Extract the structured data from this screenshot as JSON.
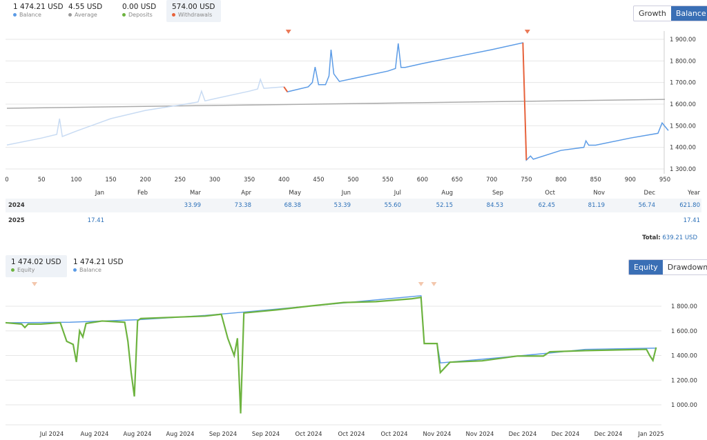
{
  "top_stats": [
    {
      "value": "1 474.21 USD",
      "label": "Balance",
      "color": "#5b9be6"
    },
    {
      "value": "4.55 USD",
      "label": "Average",
      "color": "#999999"
    },
    {
      "value": "0.00 USD",
      "label": "Deposits",
      "color": "#6db33f"
    },
    {
      "value": "574.00 USD",
      "label": "Withdrawals",
      "color": "#e8623a",
      "selected": true
    }
  ],
  "top_toggle": {
    "growth": "Growth",
    "balance": "Balance",
    "active": "Balance"
  },
  "bottom_stats": [
    {
      "value": "1 474.02 USD",
      "label": "Equity",
      "color": "#6db33f"
    },
    {
      "value": "1 474.21 USD",
      "label": "Balance",
      "color": "#5b9be6"
    }
  ],
  "bottom_toggle": {
    "equity": "Equity",
    "drawdown": "Drawdown",
    "active": "Equity"
  },
  "monthly": {
    "headers": [
      "Jan",
      "Feb",
      "Mar",
      "Apr",
      "May",
      "Jun",
      "Jul",
      "Aug",
      "Sep",
      "Oct",
      "Nov",
      "Dec",
      "Year"
    ],
    "rows": [
      {
        "year": "2024",
        "values": [
          "",
          "",
          "33.99",
          "73.38",
          "68.38",
          "53.39",
          "55.60",
          "52.15",
          "84.53",
          "62.45",
          "81.19",
          "56.74",
          "621.80"
        ]
      },
      {
        "year": "2025",
        "values": [
          "17.41",
          "",
          "",
          "",
          "",
          "",
          "",
          "",
          "",
          "",
          "",
          "",
          "17.41"
        ]
      }
    ],
    "total_label": "Total:",
    "total_value": "639.21 USD"
  },
  "chart_data": [
    {
      "type": "line",
      "x_ticks": [
        0,
        50,
        100,
        150,
        200,
        250,
        300,
        350,
        400,
        450,
        500,
        550,
        600,
        650,
        700,
        750,
        800,
        850,
        900,
        950
      ],
      "y_ticks": [
        "1 300.00",
        "1 400.00",
        "1 500.00",
        "1 600.00",
        "1 700.00",
        "1 800.00",
        "1 900.00"
      ],
      "ylim": [
        1300,
        1900
      ],
      "xlim": [
        0,
        950
      ],
      "series": [
        {
          "name": "Balance",
          "color": "#5b9be6",
          "points": [
            [
              0,
              1411
            ],
            [
              50,
              1443
            ],
            [
              72,
              1460
            ],
            [
              76,
              1533
            ],
            [
              80,
              1450
            ],
            [
              100,
              1475
            ],
            [
              150,
              1533
            ],
            [
              200,
              1571
            ],
            [
              250,
              1596
            ],
            [
              276,
              1610
            ],
            [
              281,
              1660
            ],
            [
              286,
              1615
            ],
            [
              300,
              1625
            ],
            [
              350,
              1660
            ],
            [
              362,
              1670
            ],
            [
              366,
              1715
            ],
            [
              371,
              1673
            ],
            [
              400,
              1680
            ],
            [
              405,
              1657
            ],
            [
              435,
              1680
            ],
            [
              441,
              1700
            ],
            [
              445,
              1772
            ],
            [
              450,
              1690
            ],
            [
              460,
              1690
            ],
            [
              465,
              1730
            ],
            [
              468,
              1852
            ],
            [
              472,
              1740
            ],
            [
              480,
              1705
            ],
            [
              550,
              1753
            ],
            [
              561,
              1765
            ],
            [
              565,
              1881
            ],
            [
              569,
              1770
            ],
            [
              575,
              1770
            ],
            [
              600,
              1788
            ],
            [
              650,
              1820
            ],
            [
              700,
              1852
            ],
            [
              745,
              1884
            ],
            [
              750,
              1341
            ],
            [
              756,
              1360
            ],
            [
              760,
              1345
            ],
            [
              800,
              1386
            ],
            [
              833,
              1400
            ],
            [
              836,
              1430
            ],
            [
              840,
              1410
            ],
            [
              850,
              1410
            ],
            [
              900,
              1443
            ],
            [
              940,
              1465
            ],
            [
              946,
              1513
            ],
            [
              955,
              1478
            ]
          ]
        },
        {
          "name": "Trend",
          "color": "#aaaaaa",
          "points": [
            [
              0,
              1581
            ],
            [
              950,
              1622
            ]
          ]
        }
      ],
      "withdrawals": [
        [
          400,
          405
        ],
        [
          745,
          750
        ]
      ],
      "withdrawal_color": "#e8623a"
    },
    {
      "type": "line",
      "x_ticks": [
        "Jul 2024",
        "Aug 2024",
        "Aug 2024",
        "Aug 2024",
        "Sep 2024",
        "Sep 2024",
        "Oct 2024",
        "Oct 2024",
        "Oct 2024",
        "Nov 2024",
        "Nov 2024",
        "Dec 2024",
        "Dec 2024",
        "Dec 2024",
        "Jan 2025"
      ],
      "y_ticks": [
        "1 000.00",
        "1 200.00",
        "1 400.00",
        "1 600.00",
        "1 800.00"
      ],
      "ylim": [
        900,
        1900
      ],
      "xlim": [
        "2024-06-20",
        "2025-01-09"
      ],
      "series": [
        {
          "name": "Equity",
          "color": "#6db33f",
          "points": [
            [
              "2024-06-20",
              1666
            ],
            [
              "2024-06-25",
              1655
            ],
            [
              "2024-06-26",
              1627
            ],
            [
              "2024-06-27",
              1655
            ],
            [
              "2024-07-01",
              1655
            ],
            [
              "2024-07-07",
              1666
            ],
            [
              "2024-07-09",
              1515
            ],
            [
              "2024-07-11",
              1490
            ],
            [
              "2024-07-12",
              1347
            ],
            [
              "2024-07-13",
              1600
            ],
            [
              "2024-07-14",
              1550
            ],
            [
              "2024-07-15",
              1660
            ],
            [
              "2024-07-20",
              1680
            ],
            [
              "2024-07-27",
              1670
            ],
            [
              "2024-07-28",
              1515
            ],
            [
              "2024-07-29",
              1263
            ],
            [
              "2024-07-30",
              1068
            ],
            [
              "2024-07-31",
              1682
            ],
            [
              "2024-08-01",
              1700
            ],
            [
              "2024-08-11",
              1710
            ],
            [
              "2024-08-21",
              1720
            ],
            [
              "2024-08-26",
              1735
            ],
            [
              "2024-08-28",
              1540
            ],
            [
              "2024-08-30",
              1400
            ],
            [
              "2024-08-31",
              1540
            ],
            [
              "2024-09-01",
              930
            ],
            [
              "2024-09-02",
              1745
            ],
            [
              "2024-09-12",
              1770
            ],
            [
              "2024-09-22",
              1800
            ],
            [
              "2024-10-03",
              1830
            ],
            [
              "2024-10-13",
              1837
            ],
            [
              "2024-10-24",
              1860
            ],
            [
              "2024-10-27",
              1872
            ],
            [
              "2024-10-28",
              1497
            ],
            [
              "2024-11-01",
              1497
            ],
            [
              "2024-11-02",
              1262
            ],
            [
              "2024-11-04",
              1318
            ],
            [
              "2024-11-05",
              1346
            ],
            [
              "2024-11-15",
              1357
            ],
            [
              "2024-11-26",
              1396
            ],
            [
              "2024-12-04",
              1396
            ],
            [
              "2024-12-06",
              1430
            ],
            [
              "2024-12-17",
              1440
            ],
            [
              "2025-01-05",
              1450
            ],
            [
              "2025-01-06",
              1400
            ],
            [
              "2025-01-07",
              1360
            ],
            [
              "2025-01-08",
              1466
            ]
          ]
        },
        {
          "name": "Balance",
          "color": "#5b9be6",
          "points": [
            [
              "2024-06-20",
              1666
            ],
            [
              "2024-07-10",
              1670
            ],
            [
              "2024-07-31",
              1690
            ],
            [
              "2024-08-21",
              1725
            ],
            [
              "2024-09-01",
              1750
            ],
            [
              "2024-09-22",
              1800
            ],
            [
              "2024-10-27",
              1885
            ],
            [
              "2024-10-28",
              1497
            ],
            [
              "2024-11-01",
              1497
            ],
            [
              "2024-11-02",
              1340
            ],
            [
              "2024-11-15",
              1370
            ],
            [
              "2024-12-06",
              1420
            ],
            [
              "2024-12-17",
              1450
            ],
            [
              "2025-01-08",
              1460
            ]
          ]
        }
      ],
      "markers": [
        "2024-06-29",
        "2024-10-27",
        "2024-10-31"
      ]
    }
  ]
}
